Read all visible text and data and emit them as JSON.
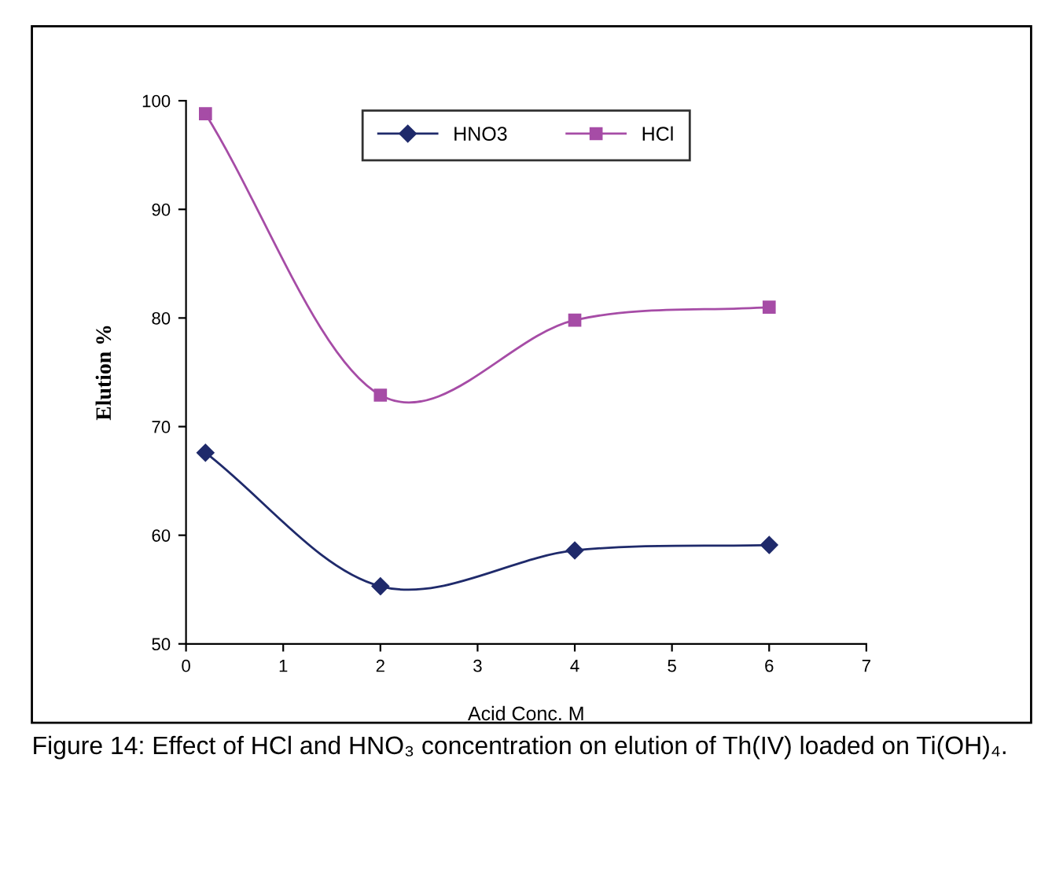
{
  "chart_data": {
    "type": "line",
    "xlabel": "Acid Conc. M",
    "ylabel": "Elution %",
    "series": [
      {
        "name": "HNO3",
        "color": "#1f2a6b",
        "marker": "diamond",
        "x": [
          0.2,
          2,
          4,
          6
        ],
        "values": [
          67.6,
          55.3,
          58.6,
          59.1
        ]
      },
      {
        "name": "HCl",
        "color": "#a64ca6",
        "marker": "square",
        "x": [
          0.2,
          2,
          4,
          6
        ],
        "values": [
          98.8,
          72.9,
          79.8,
          81.0
        ]
      }
    ],
    "xlim": [
      0,
      7
    ],
    "xticks": [
      0,
      1,
      2,
      3,
      4,
      5,
      6,
      7
    ],
    "ylim": [
      50,
      100
    ],
    "yticks": [
      50,
      60,
      70,
      80,
      90,
      100
    ],
    "grid": false,
    "legend": "top",
    "annotations": [
      "Figure 14: Effect of HCl and HNO₃ concentration on elution of Th(IV) loaded on Ti(OH)₄."
    ]
  }
}
